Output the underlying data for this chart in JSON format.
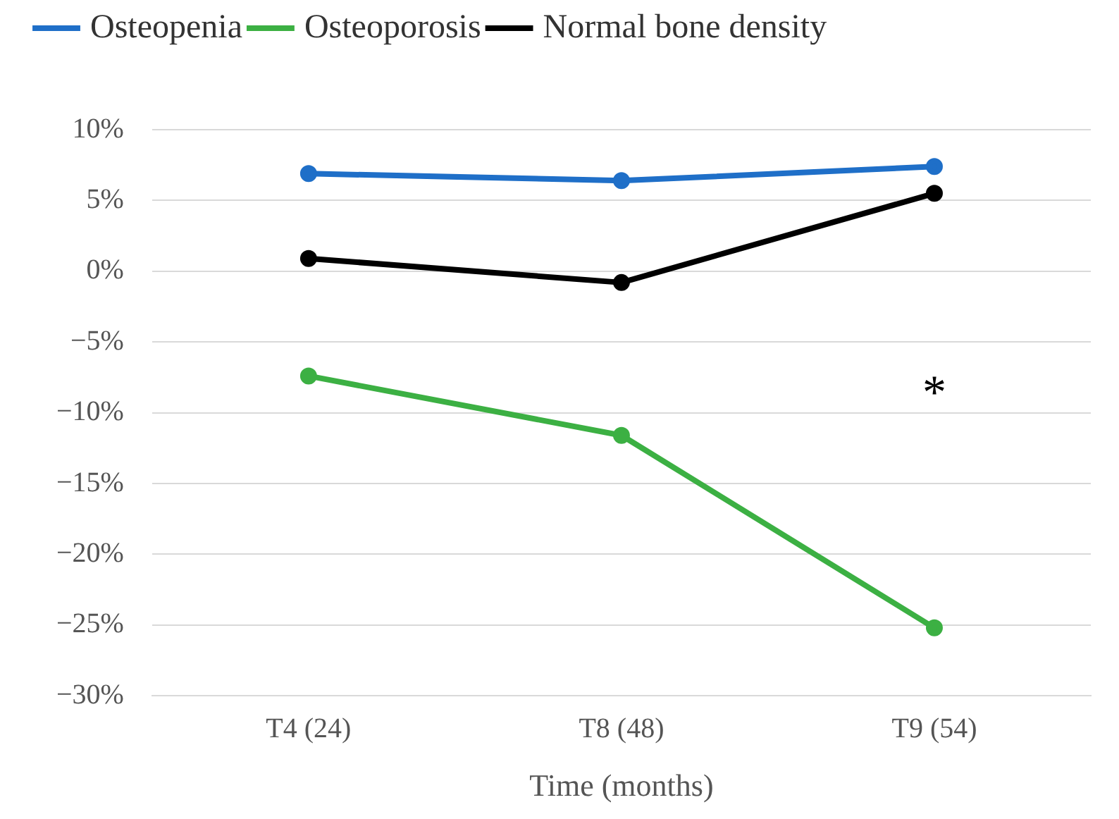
{
  "chart_data": {
    "type": "line",
    "xlabel": "Time (months)",
    "categories": [
      "T4 (24)",
      "T8 (48)",
      "T9 (54)"
    ],
    "series": [
      {
        "name": "Osteopenia",
        "color": "#1f6fc8",
        "values": [
          6.9,
          6.4,
          7.4
        ]
      },
      {
        "name": "Osteoporosis",
        "color": "#3cb043",
        "values": [
          -7.4,
          -11.6,
          -25.2
        ]
      },
      {
        "name": "Normal bone density",
        "color": "#000000",
        "values": [
          0.9,
          -0.8,
          5.5
        ]
      }
    ],
    "ylim": [
      -30,
      10
    ],
    "yticks": [
      {
        "value": -30,
        "label": "−30%"
      },
      {
        "value": -25,
        "label": "−25%"
      },
      {
        "value": -20,
        "label": "−20%"
      },
      {
        "value": -15,
        "label": "−15%"
      },
      {
        "value": -10,
        "label": "−10%"
      },
      {
        "value": -5,
        "label": "−5%"
      },
      {
        "value": 0,
        "label": "0%"
      },
      {
        "value": 5,
        "label": "5%"
      },
      {
        "value": 10,
        "label": "10%"
      }
    ],
    "grid": "y",
    "legend": "top",
    "marker": "circle",
    "line_style": "solid",
    "annotations": [
      "*"
    ]
  }
}
